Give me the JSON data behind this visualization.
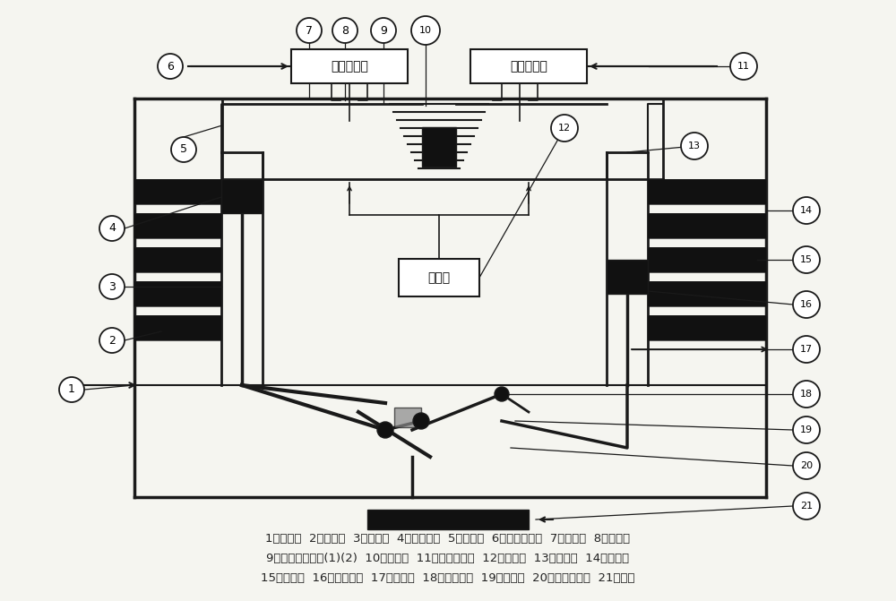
{
  "bg_color": "#f5f5f0",
  "line_color": "#1a1a1a",
  "box_fill": "#ffffff",
  "dark_fill": "#111111",
  "caption_font_size": 9.5,
  "caption_line1": "1：气缸体  2：热气缸  3：活塞杆  4：动力活塞  5：热气管  6：温差调节器  7：回热器  8：热铜管",
  "caption_line2": "9：半导体冷热片(1)(2)  10：冷铜管  11：稳压调节器  12：蓄电池  13：冷气管  14：冷气缸",
  "caption_line3": "15：散热片  16：配气活塞  17：活塞杆  18：扭力摇臂  19：平衡杆  20：倾斜角转轴  21：飞轮"
}
